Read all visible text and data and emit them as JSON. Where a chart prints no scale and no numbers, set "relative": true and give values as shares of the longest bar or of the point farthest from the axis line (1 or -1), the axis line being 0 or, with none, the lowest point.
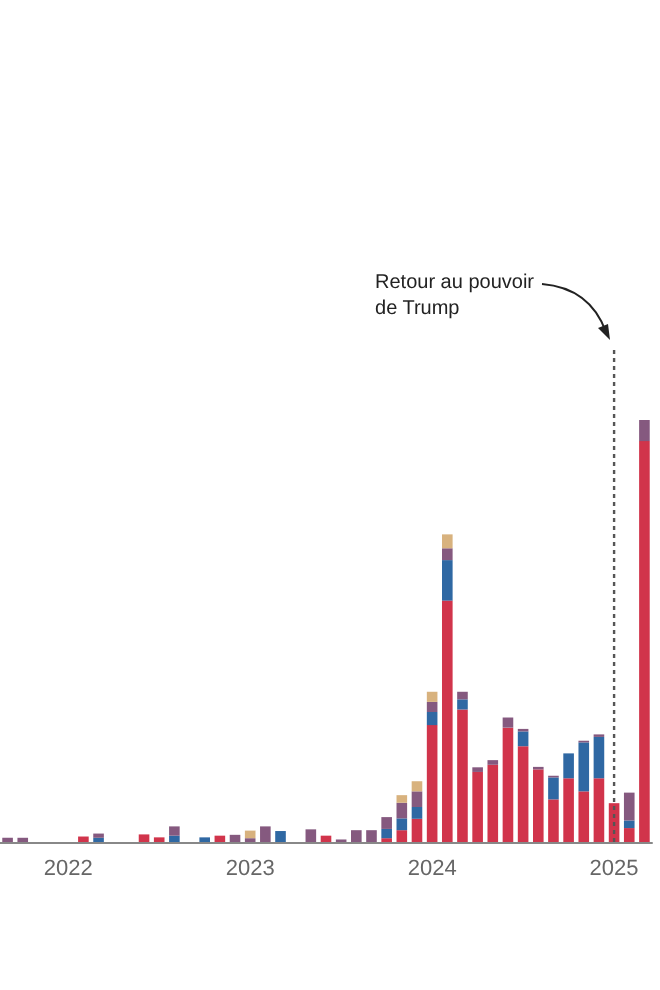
{
  "chart_data": {
    "type": "bar",
    "stacked": true,
    "relative": true,
    "categories": [
      null,
      null,
      null,
      null,
      "2022",
      null,
      null,
      null,
      null,
      null,
      null,
      null,
      null,
      null,
      null,
      null,
      "2023",
      null,
      null,
      null,
      null,
      null,
      null,
      null,
      null,
      null,
      null,
      null,
      "2024",
      null,
      null,
      null,
      null,
      null,
      null,
      null,
      null,
      null,
      null,
      null,
      "2025",
      null,
      null
    ],
    "series": [
      {
        "color": "#d1344b",
        "values": [
          0,
          0,
          0,
          0,
          0,
          0.013,
          0,
          0,
          0,
          0.018,
          0.011,
          0,
          0,
          0,
          0.015,
          0,
          0,
          0,
          0,
          0,
          0,
          0.015,
          0,
          0,
          0,
          0.009,
          0.028,
          0.055,
          0.277,
          0.572,
          0.314,
          0.166,
          0.183,
          0.271,
          0.227,
          0.172,
          0.101,
          0.151,
          0.12,
          0.151,
          0.092,
          0.033,
          0.95
        ]
      },
      {
        "color": "#2f68a3",
        "values": [
          0,
          0,
          0,
          0,
          0,
          0,
          0.01,
          0,
          0,
          0,
          0,
          0.015,
          0,
          0.011,
          0,
          0,
          0,
          0,
          0.026,
          0,
          0,
          0,
          0,
          0,
          0,
          0.022,
          0.028,
          0.028,
          0.031,
          0.096,
          0.024,
          0,
          0,
          0,
          0.035,
          0,
          0.052,
          0.059,
          0.116,
          0.098,
          0,
          0.018,
          0
        ]
      },
      {
        "color": "#85597f",
        "values": [
          0.01,
          0.01,
          0,
          0,
          0,
          0,
          0.01,
          0,
          0,
          0,
          0,
          0.022,
          0,
          0,
          0,
          0.017,
          0.009,
          0.037,
          0,
          0,
          0.03,
          0,
          0.006,
          0.028,
          0.028,
          0.028,
          0.037,
          0.037,
          0.024,
          0.028,
          0.018,
          0.011,
          0.011,
          0.024,
          0.006,
          0.006,
          0.004,
          0,
          0.004,
          0.006,
          0,
          0.066,
          0.05
        ]
      },
      {
        "color": "#d8b27e",
        "values": [
          0,
          0,
          0,
          0,
          0,
          0,
          0,
          0,
          0,
          0,
          0,
          0,
          0,
          0,
          0,
          0,
          0.018,
          0,
          0,
          0,
          0,
          0,
          0,
          0,
          0,
          0,
          0.018,
          0.024,
          0.024,
          0.033,
          0,
          0,
          0,
          0,
          0,
          0,
          0,
          0,
          0,
          0,
          0,
          0,
          0
        ]
      }
    ],
    "annotations": [
      "Retour au pouvoir\nde Trump"
    ],
    "ref_lines": [
      {
        "axis": "x",
        "value": "2025",
        "line_style": "dotted",
        "color": "#555555"
      }
    ]
  }
}
